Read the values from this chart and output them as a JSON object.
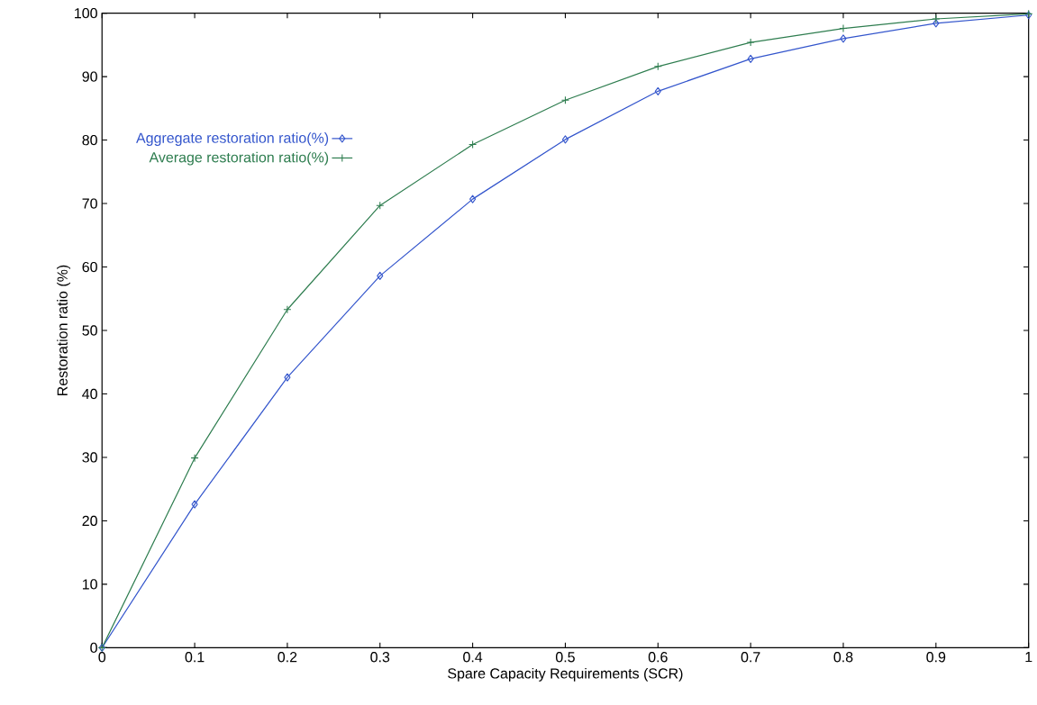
{
  "chart_data": {
    "type": "line",
    "xlabel": "Spare Capacity Requirements (SCR)",
    "ylabel": "Restoration ratio (%)",
    "x": [
      0,
      0.1,
      0.2,
      0.3,
      0.4,
      0.5,
      0.6,
      0.7,
      0.8,
      0.9,
      1
    ],
    "series": [
      {
        "name": "Aggregate restoration ratio(%)",
        "color": "#3355cc",
        "marker": "diamond",
        "values": [
          0,
          22.6,
          42.6,
          58.6,
          70.7,
          80.1,
          87.7,
          92.8,
          96.0,
          98.4,
          99.7
        ]
      },
      {
        "name": "Average restoration ratio(%)",
        "color": "#2e7d4f",
        "marker": "cross",
        "values": [
          0,
          29.9,
          53.3,
          69.7,
          79.3,
          86.3,
          91.6,
          95.4,
          97.6,
          99.1,
          99.9
        ]
      }
    ],
    "xlim": [
      0,
      1
    ],
    "ylim": [
      0,
      100
    ],
    "xticks": [
      0,
      0.1,
      0.2,
      0.3,
      0.4,
      0.5,
      0.6,
      0.7,
      0.8,
      0.9,
      1
    ],
    "yticks": [
      0,
      10,
      20,
      30,
      40,
      50,
      60,
      70,
      80,
      90,
      100
    ],
    "grid": false,
    "legend": "top left",
    "line_style": "solid"
  }
}
